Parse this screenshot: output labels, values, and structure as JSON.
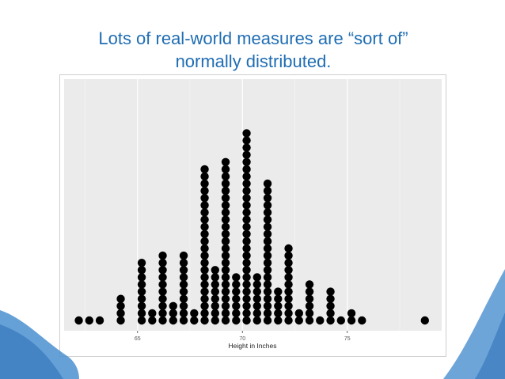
{
  "slide": {
    "title_line1": "Lots of real-world measures are “sort of”",
    "title_line2": "normally distributed.",
    "title_color": "#1f6db3",
    "decor_color": "#4a8fd0"
  },
  "chart_data": {
    "type": "scatter",
    "subtype": "dot-plot",
    "title": "",
    "xlabel": "Height in Inches",
    "ylabel": "",
    "xlim": [
      61.5,
      79.5
    ],
    "xticks": [
      65,
      70,
      75
    ],
    "grid": true,
    "panel_color": "#ebebeb",
    "dot_color": "#000000",
    "bins": [
      {
        "x": 62.2,
        "count": 1
      },
      {
        "x": 62.7,
        "count": 1
      },
      {
        "x": 63.2,
        "count": 1
      },
      {
        "x": 64.2,
        "count": 4
      },
      {
        "x": 65.2,
        "count": 9
      },
      {
        "x": 65.7,
        "count": 2
      },
      {
        "x": 66.2,
        "count": 10
      },
      {
        "x": 66.7,
        "count": 3
      },
      {
        "x": 67.2,
        "count": 10
      },
      {
        "x": 67.7,
        "count": 2
      },
      {
        "x": 68.2,
        "count": 22
      },
      {
        "x": 68.7,
        "count": 8
      },
      {
        "x": 69.2,
        "count": 23
      },
      {
        "x": 69.7,
        "count": 7
      },
      {
        "x": 70.2,
        "count": 27
      },
      {
        "x": 70.7,
        "count": 7
      },
      {
        "x": 71.2,
        "count": 20
      },
      {
        "x": 71.7,
        "count": 5
      },
      {
        "x": 72.2,
        "count": 11
      },
      {
        "x": 72.7,
        "count": 2
      },
      {
        "x": 73.2,
        "count": 6
      },
      {
        "x": 73.7,
        "count": 1
      },
      {
        "x": 74.2,
        "count": 5
      },
      {
        "x": 74.7,
        "count": 1
      },
      {
        "x": 75.2,
        "count": 2
      },
      {
        "x": 75.7,
        "count": 1
      },
      {
        "x": 78.7,
        "count": 1
      }
    ]
  }
}
